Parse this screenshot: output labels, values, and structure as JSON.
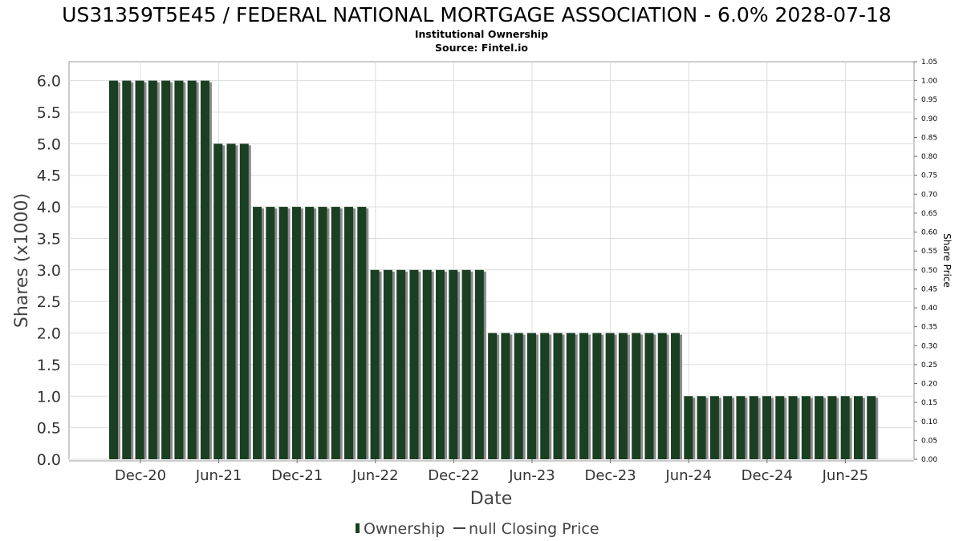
{
  "chart_data": {
    "type": "bar",
    "title": "US31359T5E45 / FEDERAL NATIONAL MORTGAGE ASSOCIATION - 6.0% 2028-07-18",
    "subtitle_lines": [
      "Institutional Ownership",
      "Source: Fintel.io"
    ],
    "xlabel": "Date",
    "ylabel": "Shares (x1000)",
    "y2label": "Share Price",
    "ylim": [
      0,
      6.3
    ],
    "y2lim": [
      0,
      1.05
    ],
    "yticks": [
      "0.0",
      "0.5",
      "1.0",
      "1.5",
      "2.0",
      "2.5",
      "3.0",
      "3.5",
      "4.0",
      "4.5",
      "5.0",
      "5.5",
      "6.0"
    ],
    "y2ticks": [
      "0.00",
      "0.05",
      "0.10",
      "0.15",
      "0.20",
      "0.25",
      "0.30",
      "0.35",
      "0.40",
      "0.45",
      "0.50",
      "0.55",
      "0.60",
      "0.65",
      "0.70",
      "0.75",
      "0.80",
      "0.85",
      "0.90",
      "0.95",
      "1.00",
      "1.05"
    ],
    "xticks": [
      "Dec-20",
      "Jun-21",
      "Dec-21",
      "Jun-22",
      "Dec-22",
      "Jun-23",
      "Dec-23",
      "Jun-24",
      "Dec-24",
      "Jun-25"
    ],
    "grid": true,
    "legend_position": "bottom",
    "series": [
      {
        "name": "Ownership",
        "color": "#1a3f22",
        "values": [
          6,
          6,
          6,
          6,
          6,
          6,
          6,
          6,
          5,
          5,
          5,
          4,
          4,
          4,
          4,
          4,
          4,
          4,
          4,
          4,
          3,
          3,
          3,
          3,
          3,
          3,
          3,
          3,
          3,
          2,
          2,
          2,
          2,
          2,
          2,
          2,
          2,
          2,
          2,
          2,
          2,
          2,
          2,
          2,
          1,
          1,
          1,
          1,
          1,
          1,
          1,
          1,
          1,
          1,
          1,
          1,
          1,
          1,
          1
        ]
      },
      {
        "name": "null Closing Price",
        "color": "#444444",
        "values": []
      }
    ]
  }
}
